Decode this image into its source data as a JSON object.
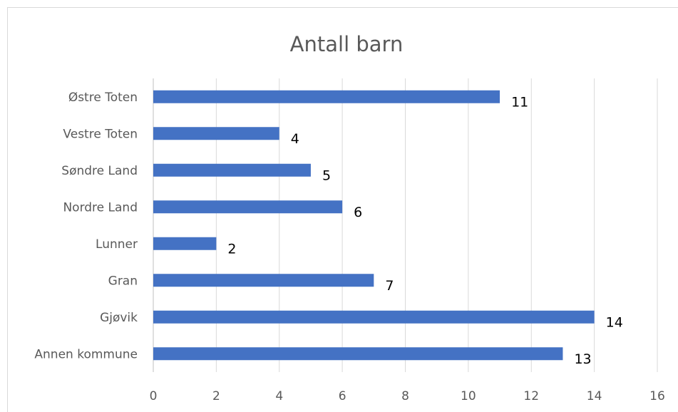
{
  "chart_data": {
    "type": "bar",
    "orientation": "horizontal",
    "title": "Antall barn",
    "categories": [
      "Østre Toten",
      "Vestre Toten",
      "Søndre Land",
      "Nordre Land",
      "Lunner",
      "Gran",
      "Gjøvik",
      "Annen kommune"
    ],
    "values": [
      11,
      4,
      5,
      6,
      2,
      7,
      14,
      13
    ],
    "color": "#4472c4",
    "xlim": [
      0,
      16
    ],
    "xticks": [
      0,
      2,
      4,
      6,
      8,
      10,
      12,
      14,
      16
    ],
    "grid": true
  }
}
